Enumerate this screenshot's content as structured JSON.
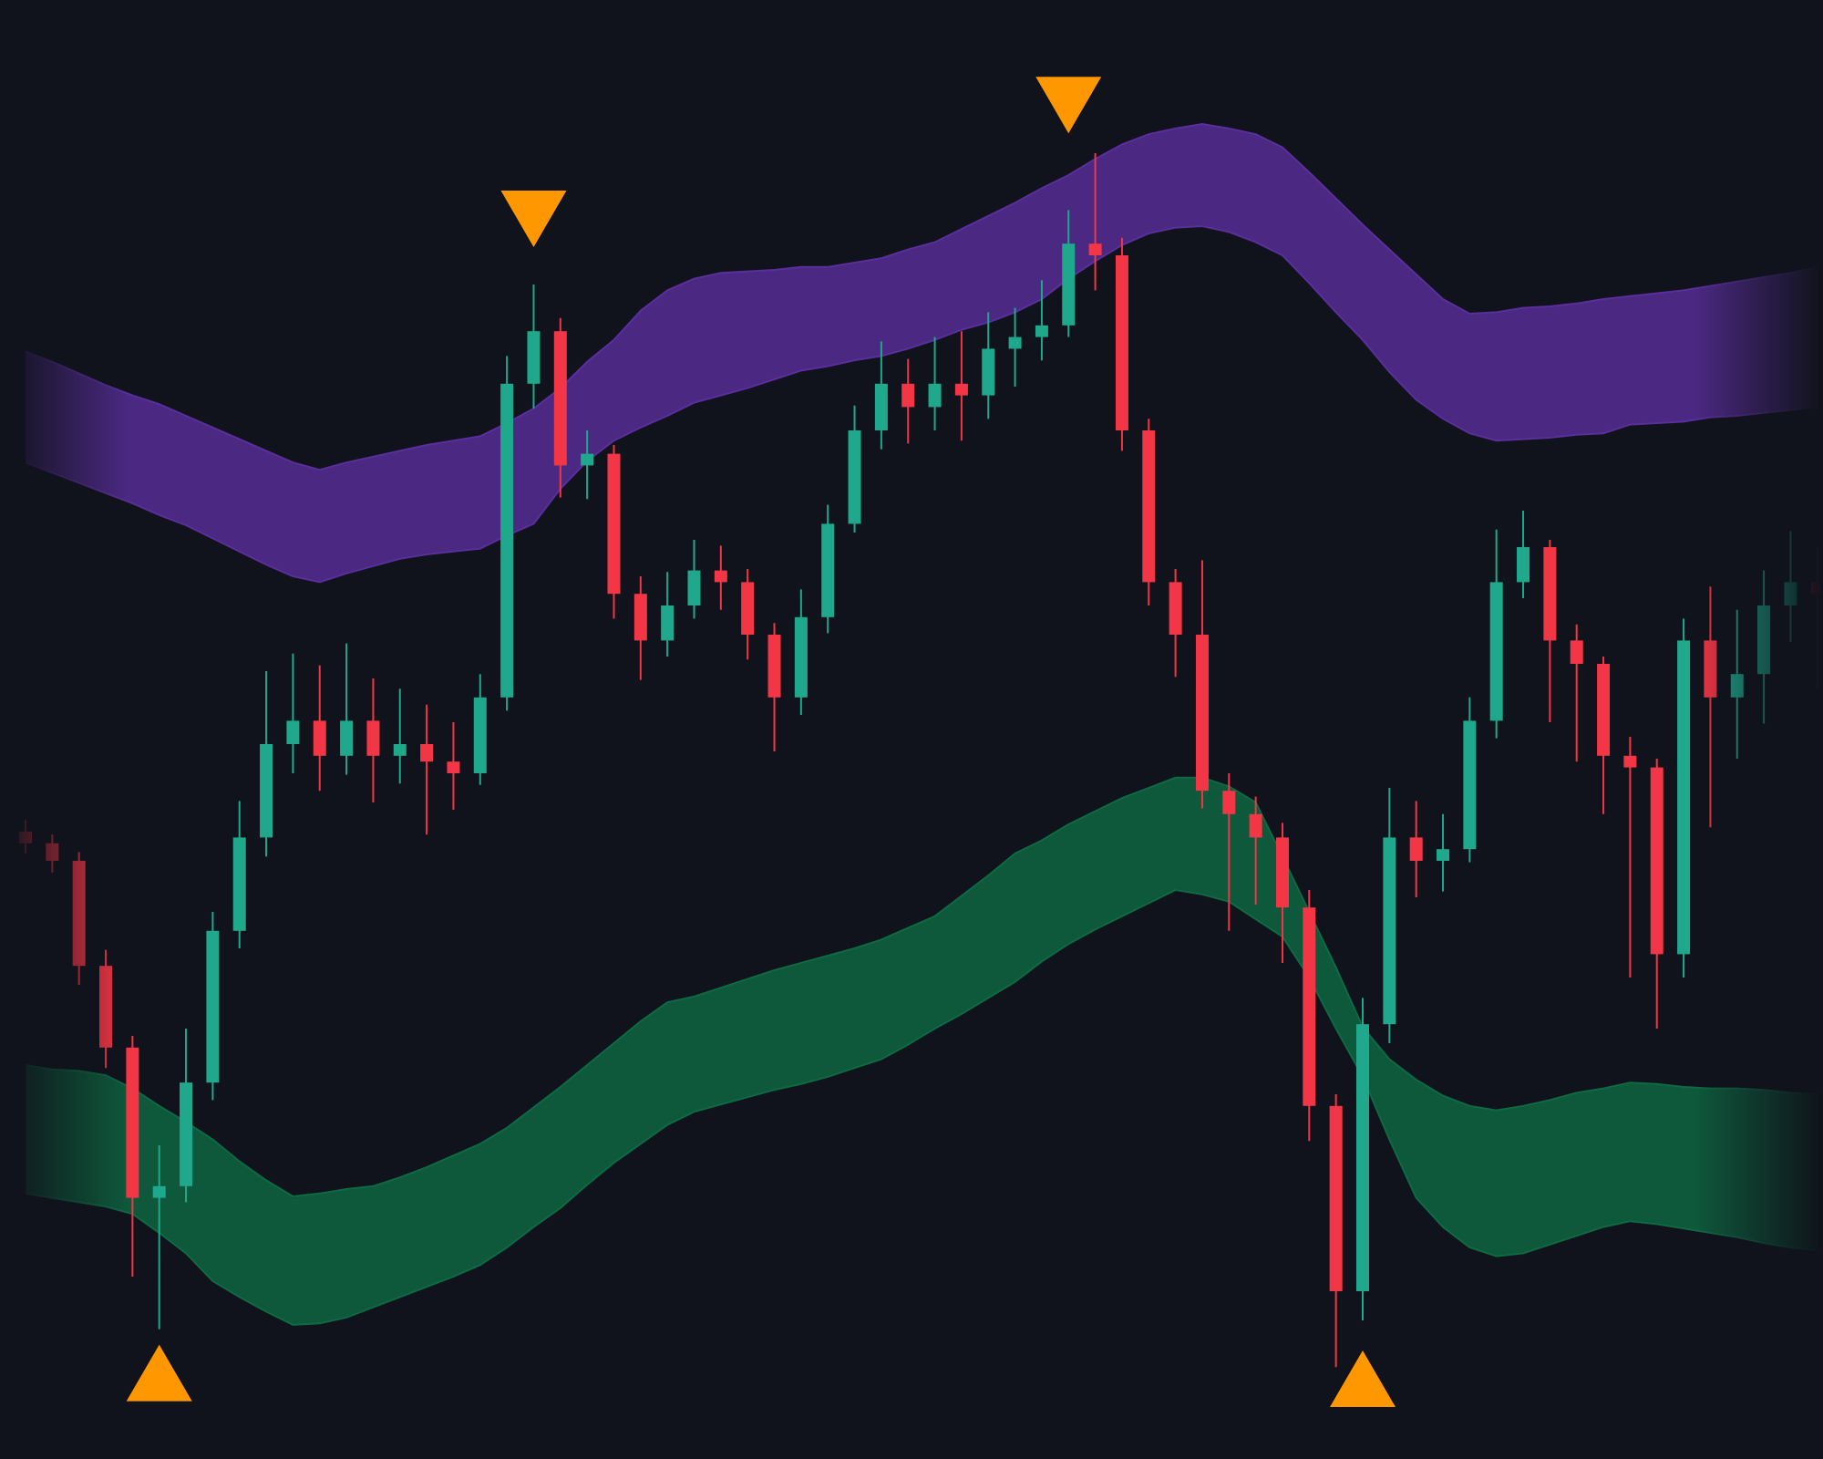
{
  "chart_data": {
    "type": "candlestick",
    "categories": [
      null,
      null,
      null,
      null,
      null,
      null,
      null,
      null,
      null,
      null,
      null,
      null,
      null,
      null,
      null,
      null,
      null,
      null,
      null,
      null,
      null,
      null,
      null,
      null,
      null,
      null,
      null,
      null,
      null,
      null,
      null,
      null,
      null,
      null,
      null,
      null,
      null,
      null,
      null,
      null,
      null,
      null,
      null,
      null,
      null,
      null,
      null,
      null,
      null,
      null,
      null,
      null,
      null,
      null,
      null,
      null,
      null,
      null,
      null,
      null,
      null,
      null,
      null,
      null,
      null,
      null,
      null,
      null
    ],
    "open": [
      43.0,
      42.2,
      41.0,
      33.8,
      28.2,
      17.9,
      18.7,
      25.8,
      36.2,
      42.6,
      49.0,
      50.6,
      48.2,
      50.6,
      48.2,
      49.0,
      47.8,
      47.0,
      52.2,
      73.7,
      77.3,
      68.1,
      68.9,
      59.3,
      56.1,
      58.5,
      60.9,
      60.1,
      56.5,
      52.2,
      57.7,
      64.1,
      70.5,
      73.7,
      72.1,
      73.7,
      72.9,
      76.1,
      76.9,
      77.7,
      83.3,
      82.5,
      70.5,
      60.1,
      56.5,
      45.8,
      44.2,
      42.6,
      37.8,
      24.2,
      11.5,
      29.8,
      42.6,
      41.0,
      41.8,
      50.6,
      60.1,
      62.5,
      56.1,
      54.5,
      48.2,
      47.4,
      34.6,
      56.1,
      52.2,
      53.8,
      58.5,
      60.1
    ],
    "high": [
      43.8,
      42.8,
      41.6,
      34.9,
      29.0,
      21.5,
      29.5,
      37.5,
      45.1,
      54.0,
      55.2,
      54.4,
      55.9,
      53.5,
      52.8,
      51.7,
      50.5,
      53.8,
      75.6,
      80.5,
      78.2,
      70.5,
      69.5,
      60.5,
      60.8,
      63.0,
      62.6,
      61.0,
      57.3,
      59.6,
      65.4,
      72.2,
      76.6,
      75.4,
      76.9,
      77.3,
      78.6,
      78.9,
      80.8,
      85.6,
      89.5,
      83.7,
      71.3,
      61.0,
      61.6,
      47.0,
      45.4,
      43.6,
      39.0,
      25.0,
      31.6,
      46.0,
      45.1,
      44.2,
      52.2,
      63.7,
      65.0,
      63.0,
      57.2,
      55.0,
      49.5,
      48.0,
      57.6,
      59.8,
      58.2,
      60.9,
      63.6,
      62.5
    ],
    "low": [
      41.5,
      40.2,
      32.5,
      26.8,
      12.5,
      8.9,
      17.6,
      24.6,
      35.0,
      41.3,
      47.0,
      45.8,
      46.9,
      45.0,
      46.3,
      42.8,
      44.5,
      46.2,
      51.3,
      72.0,
      65.9,
      65.8,
      57.6,
      53.4,
      55.0,
      57.6,
      58.2,
      54.8,
      48.5,
      51.0,
      56.6,
      63.5,
      69.2,
      69.6,
      70.5,
      69.8,
      71.3,
      73.5,
      75.3,
      76.9,
      80.1,
      69.1,
      58.5,
      53.6,
      44.6,
      36.2,
      38.0,
      34.0,
      21.8,
      6.3,
      9.5,
      28.5,
      38.5,
      38.9,
      40.9,
      49.4,
      59.0,
      50.5,
      47.8,
      44.2,
      33.0,
      29.5,
      33.0,
      43.3,
      48.0,
      50.4,
      56.0,
      52.7
    ],
    "close": [
      42.2,
      41.0,
      33.8,
      28.2,
      17.9,
      18.7,
      25.8,
      36.2,
      42.6,
      49.0,
      50.6,
      48.2,
      50.6,
      48.2,
      49.0,
      47.8,
      47.0,
      52.2,
      73.7,
      77.3,
      68.1,
      68.9,
      59.3,
      56.1,
      58.5,
      60.9,
      60.1,
      56.5,
      52.2,
      57.7,
      64.1,
      70.5,
      73.7,
      72.1,
      73.7,
      72.9,
      76.1,
      76.9,
      77.7,
      83.3,
      82.5,
      70.5,
      60.1,
      56.5,
      45.8,
      44.2,
      42.6,
      37.8,
      24.2,
      11.5,
      29.8,
      42.6,
      41.0,
      41.8,
      50.6,
      60.1,
      62.5,
      56.1,
      54.5,
      48.2,
      47.4,
      34.6,
      56.1,
      52.2,
      53.8,
      58.5,
      60.1,
      59.3
    ],
    "up_color": "#1fa88c",
    "down_color": "#f23645",
    "ylim": [
      0,
      100
    ],
    "grid": false,
    "upper_band": {
      "color": "#5a2e9c",
      "top": [
        75.9,
        75.2,
        74.4,
        73.6,
        72.9,
        72.3,
        71.5,
        70.7,
        69.9,
        69.1,
        68.3,
        67.8,
        68.3,
        68.7,
        69.1,
        69.5,
        69.8,
        70.1,
        71.0,
        72.0,
        73.4,
        75.2,
        76.7,
        78.7,
        80.1,
        80.9,
        81.3,
        81.4,
        81.5,
        81.7,
        81.7,
        82.0,
        82.3,
        82.9,
        83.4,
        84.3,
        85.2,
        86.1,
        87.1,
        88.0,
        89.1,
        90.1,
        90.8,
        91.2,
        91.5,
        91.2,
        90.8,
        89.9,
        88.2,
        86.4,
        84.6,
        82.9,
        81.2,
        79.5,
        78.5,
        78.6,
        78.9,
        79.0,
        79.2,
        79.5,
        79.7,
        79.9,
        80.1,
        80.4,
        80.7,
        81.0,
        81.3,
        81.7
      ],
      "bottom": [
        68.3,
        67.6,
        66.9,
        66.2,
        65.5,
        64.7,
        64.0,
        63.1,
        62.2,
        61.3,
        60.5,
        60.1,
        60.7,
        61.2,
        61.7,
        62.0,
        62.2,
        62.4,
        63.3,
        64.1,
        66.5,
        68.4,
        69.8,
        70.7,
        71.5,
        72.4,
        72.9,
        73.4,
        74.0,
        74.6,
        74.9,
        75.3,
        75.6,
        76.1,
        76.7,
        77.4,
        77.9,
        78.6,
        79.5,
        80.9,
        82.1,
        83.2,
        84.0,
        84.4,
        84.5,
        84.1,
        83.4,
        82.5,
        80.6,
        78.6,
        76.7,
        74.5,
        72.6,
        71.3,
        70.3,
        69.8,
        69.9,
        70.0,
        70.2,
        70.3,
        70.9,
        71.0,
        71.1,
        71.4,
        71.5,
        71.7,
        71.9,
        72.1
      ]
    },
    "lower_band": {
      "color": "#0e6a43",
      "top": [
        27.0,
        26.7,
        26.6,
        26.3,
        25.4,
        24.2,
        23.1,
        21.9,
        20.4,
        19.1,
        18.0,
        18.2,
        18.5,
        18.7,
        19.3,
        20.0,
        20.8,
        21.6,
        22.7,
        24.1,
        25.5,
        27.0,
        28.5,
        30.0,
        31.3,
        31.7,
        32.3,
        32.9,
        33.5,
        34.0,
        34.5,
        35.0,
        35.6,
        36.4,
        37.2,
        38.6,
        40.0,
        41.5,
        42.4,
        43.5,
        44.4,
        45.3,
        46.0,
        46.7,
        46.7,
        46.1,
        45.0,
        41.3,
        37.5,
        33.7,
        29.6,
        27.4,
        26.0,
        24.9,
        24.2,
        23.9,
        24.2,
        24.6,
        25.1,
        25.4,
        25.8,
        25.7,
        25.5,
        25.4,
        25.4,
        25.3,
        25.1,
        25.0
      ],
      "bottom": [
        18.2,
        17.9,
        17.6,
        17.3,
        16.8,
        15.5,
        14.1,
        12.2,
        11.1,
        10.1,
        9.2,
        9.3,
        9.7,
        10.4,
        11.1,
        11.8,
        12.5,
        13.3,
        14.5,
        15.9,
        17.2,
        18.8,
        20.3,
        21.6,
        22.9,
        23.8,
        24.3,
        24.8,
        25.3,
        25.7,
        26.2,
        26.8,
        27.4,
        28.4,
        29.5,
        30.5,
        31.6,
        32.7,
        34.1,
        35.3,
        36.3,
        37.2,
        38.1,
        39.0,
        38.7,
        38.2,
        37.0,
        35.8,
        33.0,
        29.5,
        26.2,
        21.9,
        17.9,
        15.9,
        14.5,
        13.9,
        14.1,
        14.7,
        15.3,
        15.9,
        16.3,
        16.1,
        15.8,
        15.5,
        15.2,
        14.8,
        14.5,
        14.3
      ]
    },
    "signal_color": "#ff9800",
    "sell_signals": [
      null,
      null,
      null,
      null,
      null,
      null,
      null,
      null,
      null,
      null,
      null,
      null,
      null,
      null,
      null,
      null,
      null,
      null,
      null,
      85.0,
      null,
      null,
      null,
      null,
      null,
      null,
      null,
      null,
      null,
      null,
      null,
      null,
      null,
      null,
      null,
      null,
      null,
      null,
      null,
      92.8,
      null,
      null,
      null,
      null,
      null,
      null,
      null,
      null,
      null,
      null,
      null,
      null,
      null,
      null,
      null,
      null,
      null,
      null,
      null,
      null,
      null,
      null,
      null,
      null,
      null,
      null,
      null,
      null
    ],
    "buy_signals": [
      null,
      null,
      null,
      null,
      null,
      5.9,
      null,
      null,
      null,
      null,
      null,
      null,
      null,
      null,
      null,
      null,
      null,
      null,
      null,
      null,
      null,
      null,
      null,
      null,
      null,
      null,
      null,
      null,
      null,
      null,
      null,
      null,
      null,
      null,
      null,
      null,
      null,
      null,
      null,
      null,
      null,
      null,
      null,
      null,
      null,
      null,
      null,
      null,
      null,
      null,
      5.5,
      null,
      null,
      null,
      null,
      null,
      null,
      null,
      null,
      null,
      null,
      null,
      null,
      null,
      null,
      null,
      null,
      null
    ]
  }
}
